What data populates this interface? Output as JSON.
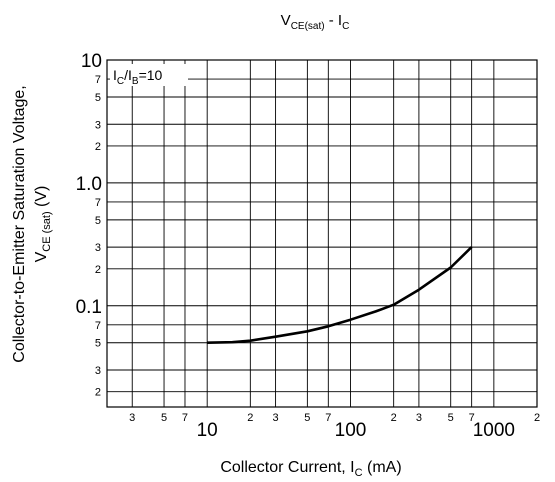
{
  "chart_data": {
    "type": "line",
    "title": {
      "main": "V",
      "sub1": "CE(sat)",
      "mid": " - I",
      "sub2": "C"
    },
    "xlabel": {
      "pre": "Collector Current, I",
      "sub": "C",
      "post": " (mA)"
    },
    "ylabel": {
      "line1": "Collector-to-Emitter Saturation Voltage,",
      "line2_main": "V",
      "line2_sub": "CE (sat)",
      "line2_post": " (V)"
    },
    "annotation": {
      "p1": "I",
      "s1": "C",
      "p2": "/I",
      "s2": "B",
      "p3": "=10"
    },
    "x_scale": "log",
    "y_scale": "log",
    "xlim": [
      2,
      2000
    ],
    "ylim": [
      0.015,
      10
    ],
    "grid": true,
    "x_major_ticks": [
      {
        "value": 10,
        "label": "10"
      },
      {
        "value": 100,
        "label": "100"
      },
      {
        "value": 1000,
        "label": "1000"
      }
    ],
    "x_minor_ticks": [
      {
        "value": 3,
        "label": "3"
      },
      {
        "value": 5,
        "label": "5"
      },
      {
        "value": 7,
        "label": "7"
      },
      {
        "value": 20,
        "label": "2"
      },
      {
        "value": 30,
        "label": "3"
      },
      {
        "value": 50,
        "label": "5"
      },
      {
        "value": 70,
        "label": "7"
      },
      {
        "value": 200,
        "label": "2"
      },
      {
        "value": 300,
        "label": "3"
      },
      {
        "value": 500,
        "label": "5"
      },
      {
        "value": 700,
        "label": "7"
      },
      {
        "value": 2000,
        "label": "2"
      }
    ],
    "y_major_ticks": [
      {
        "value": 10,
        "label": "10"
      },
      {
        "value": 1,
        "label": "1.0"
      },
      {
        "value": 0.1,
        "label": "0.1"
      }
    ],
    "y_minor_ticks": [
      {
        "value": 7,
        "label": "7"
      },
      {
        "value": 5,
        "label": "5"
      },
      {
        "value": 3,
        "label": "3"
      },
      {
        "value": 2,
        "label": "2"
      },
      {
        "value": 0.7,
        "label": "7"
      },
      {
        "value": 0.5,
        "label": "5"
      },
      {
        "value": 0.3,
        "label": "3"
      },
      {
        "value": 0.2,
        "label": "2"
      },
      {
        "value": 0.07,
        "label": "7"
      },
      {
        "value": 0.05,
        "label": "5"
      },
      {
        "value": 0.03,
        "label": "3"
      },
      {
        "value": 0.02,
        "label": "2"
      }
    ],
    "series": [
      {
        "x": [
          10,
          15,
          20,
          30,
          50,
          70,
          100,
          150,
          200,
          300,
          500,
          700
        ],
        "y": [
          0.05,
          0.0505,
          0.052,
          0.056,
          0.062,
          0.068,
          0.077,
          0.09,
          0.102,
          0.135,
          0.205,
          0.3
        ]
      }
    ]
  }
}
